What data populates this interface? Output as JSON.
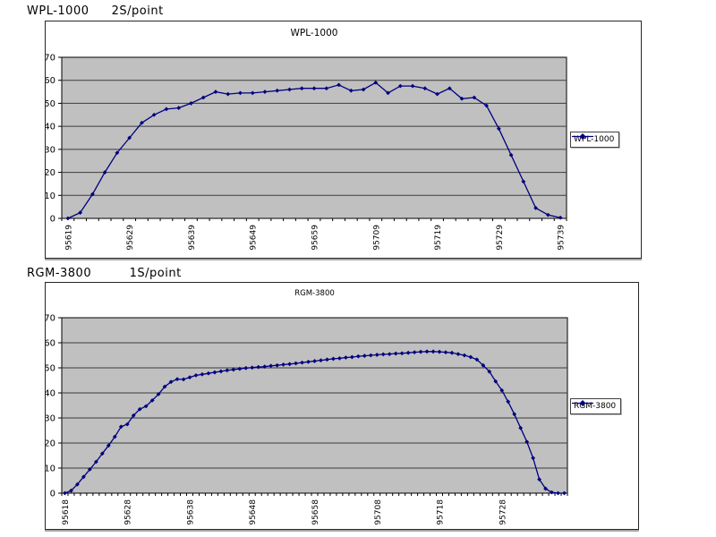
{
  "page": {
    "background": "#ffffff"
  },
  "sections": [
    {
      "model": "WPL-1000",
      "rate": "2S/point"
    },
    {
      "model": "RGM-3800",
      "rate": "1S/point"
    }
  ],
  "chart_data": [
    {
      "type": "line",
      "title": "WPL-1000",
      "xlabel": "",
      "ylabel": "",
      "ylim": [
        0,
        70
      ],
      "y_ticks": [
        0,
        10,
        20,
        30,
        40,
        50,
        60,
        70
      ],
      "grid": true,
      "plot_bg": "#c0c0c0",
      "legend_position": "right",
      "x_label_every": 5,
      "x_labels": [
        "95619",
        "95629",
        "95639",
        "95649",
        "95659",
        "95709",
        "95719",
        "95729",
        "95739"
      ],
      "series": [
        {
          "name": "WPL-1000",
          "color": "#000080",
          "marker": "diamond",
          "values": [
            0,
            2.5,
            10.5,
            20,
            28.5,
            35,
            41.5,
            45,
            47.5,
            48,
            50,
            52.5,
            55,
            54,
            54.5,
            54.5,
            55,
            55.5,
            56,
            56.5,
            56.5,
            56.5,
            58,
            55.5,
            56,
            59,
            54.5,
            57.5,
            57.5,
            56.5,
            54,
            56.5,
            52,
            52.5,
            49,
            39,
            27.5,
            16,
            4.5,
            1.5,
            0.3
          ]
        }
      ]
    },
    {
      "type": "line",
      "title": "RGM-3800",
      "xlabel": "",
      "ylabel": "",
      "ylim": [
        0,
        70
      ],
      "y_ticks": [
        0,
        10,
        20,
        30,
        40,
        50,
        60,
        70
      ],
      "grid": true,
      "plot_bg": "#c0c0c0",
      "legend_position": "right",
      "x_label_every": 10,
      "x_labels": [
        "95618",
        "95628",
        "95638",
        "95648",
        "95658",
        "95708",
        "95718",
        "95728"
      ],
      "series": [
        {
          "name": "RGM-3800",
          "color": "#000080",
          "marker": "diamond",
          "values": [
            0,
            1,
            3.5,
            6.5,
            9.5,
            12.5,
            15.8,
            19,
            22.5,
            26.5,
            27.5,
            31,
            33.5,
            34.7,
            37,
            39.5,
            42.5,
            44.4,
            45.5,
            45.4,
            46.2,
            47,
            47.4,
            47.8,
            48.2,
            48.6,
            49,
            49.3,
            49.6,
            49.9,
            50.1,
            50.3,
            50.5,
            50.8,
            51,
            51.3,
            51.5,
            51.8,
            52.1,
            52.4,
            52.7,
            53,
            53.3,
            53.6,
            53.8,
            54.1,
            54.3,
            54.6,
            54.8,
            55,
            55.2,
            55.4,
            55.5,
            55.7,
            55.8,
            56,
            56.2,
            56.4,
            56.5,
            56.5,
            56.4,
            56.2,
            56,
            55.5,
            55,
            54.3,
            53.3,
            51,
            48.5,
            44.6,
            41,
            36.5,
            31.5,
            26,
            20.5,
            14,
            5.5,
            1.8,
            0.3,
            0,
            0
          ]
        }
      ]
    }
  ]
}
